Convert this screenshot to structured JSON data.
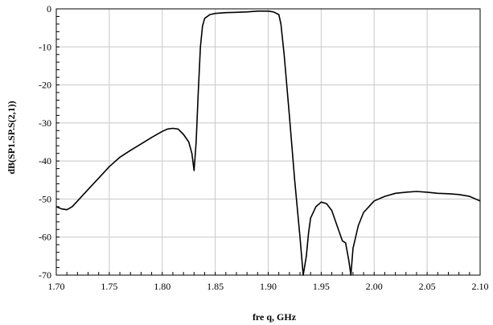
{
  "chart_data": {
    "type": "line",
    "title": "",
    "xlabel": "fre q, GHz",
    "ylabel": "dB(SP1.SP.S(2,1))",
    "xlim": [
      1.7,
      2.1
    ],
    "ylim": [
      -70,
      0
    ],
    "grid": true,
    "x_ticks": [
      "1.70",
      "1.75",
      "1.80",
      "1.85",
      "1.90",
      "1.95",
      "2.00",
      "2.05",
      "2.10"
    ],
    "y_ticks": [
      "0",
      "-10",
      "-20",
      "-30",
      "-40",
      "-50",
      "-60",
      "-70"
    ],
    "series": [
      {
        "color": "#000000",
        "points": [
          [
            1.7,
            -52.0
          ],
          [
            1.705,
            -52.6
          ],
          [
            1.71,
            -52.8
          ],
          [
            1.715,
            -52.0
          ],
          [
            1.72,
            -50.5
          ],
          [
            1.73,
            -47.5
          ],
          [
            1.74,
            -44.5
          ],
          [
            1.75,
            -41.5
          ],
          [
            1.76,
            -39.0
          ],
          [
            1.77,
            -37.2
          ],
          [
            1.78,
            -35.5
          ],
          [
            1.79,
            -33.8
          ],
          [
            1.8,
            -32.2
          ],
          [
            1.805,
            -31.6
          ],
          [
            1.81,
            -31.4
          ],
          [
            1.815,
            -31.6
          ],
          [
            1.82,
            -33.0
          ],
          [
            1.825,
            -35.0
          ],
          [
            1.828,
            -38.0
          ],
          [
            1.83,
            -42.5
          ],
          [
            1.832,
            -35.0
          ],
          [
            1.834,
            -22.0
          ],
          [
            1.836,
            -10.0
          ],
          [
            1.838,
            -4.5
          ],
          [
            1.84,
            -2.5
          ],
          [
            1.845,
            -1.5
          ],
          [
            1.85,
            -1.2
          ],
          [
            1.86,
            -1.0
          ],
          [
            1.87,
            -0.9
          ],
          [
            1.88,
            -0.8
          ],
          [
            1.89,
            -0.6
          ],
          [
            1.9,
            -0.6
          ],
          [
            1.905,
            -0.8
          ],
          [
            1.91,
            -1.5
          ],
          [
            1.912,
            -4.0
          ],
          [
            1.915,
            -12.0
          ],
          [
            1.92,
            -28.0
          ],
          [
            1.925,
            -45.0
          ],
          [
            1.93,
            -60.0
          ],
          [
            1.933,
            -70.0
          ],
          [
            1.936,
            -65.0
          ],
          [
            1.938,
            -59.0
          ],
          [
            1.94,
            -55.0
          ],
          [
            1.945,
            -52.0
          ],
          [
            1.95,
            -50.8
          ],
          [
            1.955,
            -51.2
          ],
          [
            1.96,
            -53.0
          ],
          [
            1.965,
            -57.0
          ],
          [
            1.97,
            -61.0
          ],
          [
            1.973,
            -61.5
          ],
          [
            1.976,
            -66.0
          ],
          [
            1.978,
            -70.0
          ],
          [
            1.98,
            -63.0
          ],
          [
            1.985,
            -57.0
          ],
          [
            1.99,
            -53.5
          ],
          [
            1.995,
            -52.0
          ],
          [
            2.0,
            -50.5
          ],
          [
            2.01,
            -49.3
          ],
          [
            2.02,
            -48.5
          ],
          [
            2.03,
            -48.2
          ],
          [
            2.04,
            -48.0
          ],
          [
            2.05,
            -48.2
          ],
          [
            2.06,
            -48.5
          ],
          [
            2.07,
            -48.6
          ],
          [
            2.08,
            -48.8
          ],
          [
            2.09,
            -49.3
          ],
          [
            2.1,
            -50.5
          ]
        ]
      }
    ]
  }
}
